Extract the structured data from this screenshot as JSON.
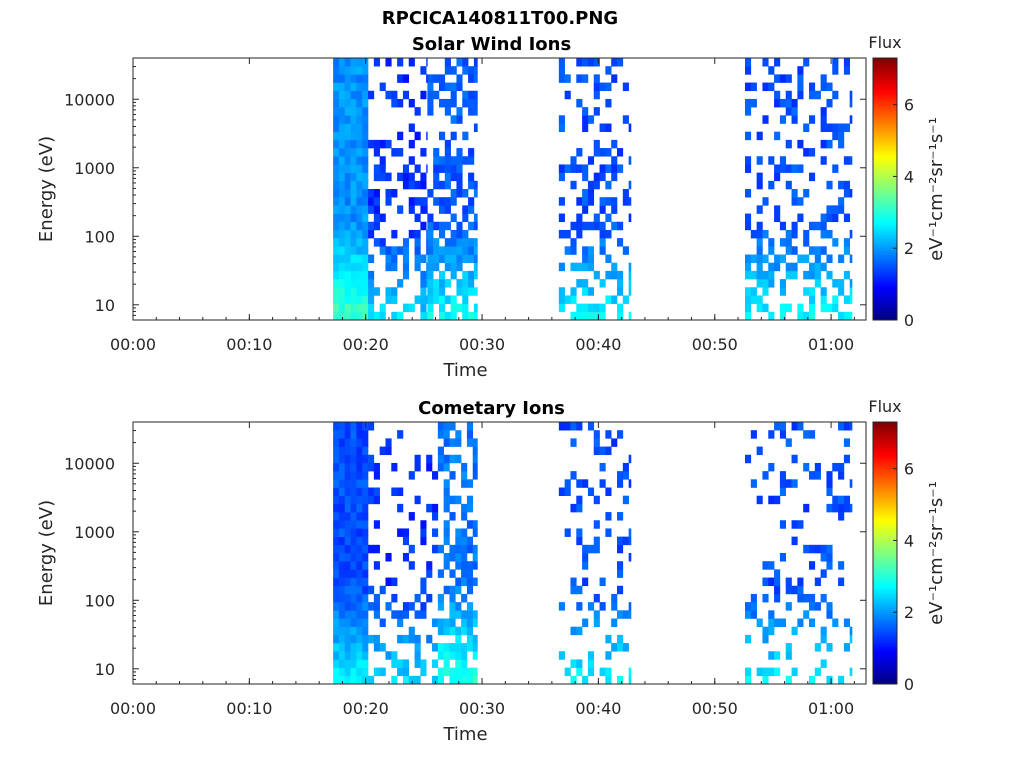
{
  "figure_title": "RPCICA140811T00.PNG",
  "chart_data": [
    {
      "type": "heatmap",
      "title": "Solar Wind Ions",
      "xlabel": "Time",
      "ylabel": "Energy (eV)",
      "xticks": [
        "00:00",
        "00:10",
        "00:20",
        "00:30",
        "00:40",
        "00:50",
        "01:00"
      ],
      "xlim_minutes": [
        0,
        63
      ],
      "yscale": "log",
      "yticks": [
        "10",
        "100",
        "1000",
        "10000"
      ],
      "ylim": [
        6,
        40000
      ],
      "colorbar": {
        "title": "Flux",
        "label": "eV⁻¹cm⁻²sr⁻¹s⁻¹",
        "ticks": [
          "0",
          "2",
          "4",
          "6"
        ],
        "range": [
          0,
          7.3
        ]
      },
      "segments": [
        {
          "start": 17.2,
          "end": 20.2,
          "level": 1.7,
          "density": 1.0
        },
        {
          "start": 20.2,
          "end": 25.3,
          "level": 1.0,
          "density": 0.5
        },
        {
          "start": 25.3,
          "end": 29.6,
          "level": 1.3,
          "density": 0.85
        },
        {
          "start": 36.6,
          "end": 42.8,
          "level": 1.2,
          "density": 0.5
        },
        {
          "start": 52.6,
          "end": 61.8,
          "level": 1.2,
          "density": 0.5
        }
      ]
    },
    {
      "type": "heatmap",
      "title": "Cometary Ions",
      "xlabel": "Time",
      "ylabel": "Energy (eV)",
      "xticks": [
        "00:00",
        "00:10",
        "00:20",
        "00:30",
        "00:40",
        "00:50",
        "01:00"
      ],
      "xlim_minutes": [
        0,
        63
      ],
      "yscale": "log",
      "yticks": [
        "10",
        "100",
        "1000",
        "10000"
      ],
      "ylim": [
        6,
        40000
      ],
      "colorbar": {
        "title": "Flux",
        "label": "eV⁻¹cm⁻²sr⁻¹s⁻¹",
        "ticks": [
          "0",
          "2",
          "4",
          "6"
        ],
        "range": [
          0,
          7.3
        ]
      },
      "segments": [
        {
          "start": 17.2,
          "end": 20.2,
          "level": 1.2,
          "density": 1.0
        },
        {
          "start": 20.2,
          "end": 26.2,
          "level": 1.0,
          "density": 0.35
        },
        {
          "start": 26.2,
          "end": 29.6,
          "level": 1.5,
          "density": 0.8
        },
        {
          "start": 36.6,
          "end": 42.8,
          "level": 1.2,
          "density": 0.3
        },
        {
          "start": 52.6,
          "end": 61.8,
          "level": 1.2,
          "density": 0.3
        }
      ]
    }
  ]
}
